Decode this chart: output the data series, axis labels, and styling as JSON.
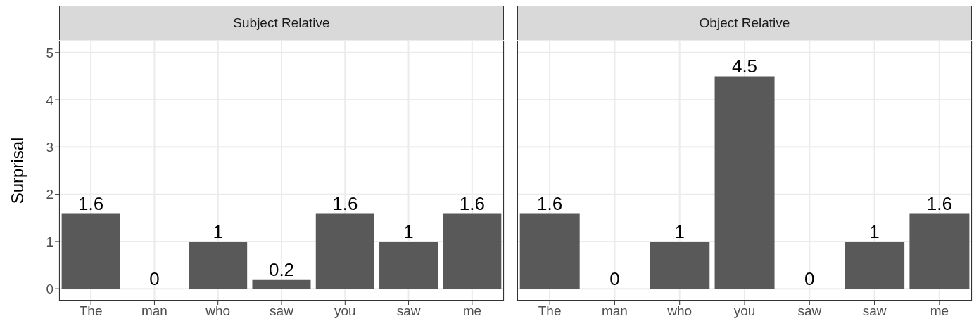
{
  "chart_data": [
    {
      "type": "bar",
      "title": "Subject Relative",
      "ylabel": "Surprisal",
      "categories": [
        "The",
        "man",
        "who",
        "saw",
        "you",
        "saw",
        "me"
      ],
      "values": [
        1.6,
        0,
        1,
        0.2,
        1.6,
        1,
        1.6
      ],
      "color": "#595959",
      "ylim": [
        -0.25,
        5.25
      ],
      "yticks": [
        0,
        1,
        2,
        3,
        4,
        5
      ],
      "grid": true,
      "data_labels": true
    },
    {
      "type": "bar",
      "title": "Object Relative",
      "categories": [
        "The",
        "man",
        "who",
        "you",
        "saw",
        "saw",
        "me"
      ],
      "values": [
        1.6,
        0,
        1,
        4.5,
        0,
        1,
        1.6
      ],
      "color": "#595959",
      "ylim": [
        -0.25,
        5.25
      ],
      "yticks": [
        0,
        1,
        2,
        3,
        4,
        5
      ],
      "grid": true,
      "data_labels": true,
      "tick_labels": "x"
    }
  ]
}
